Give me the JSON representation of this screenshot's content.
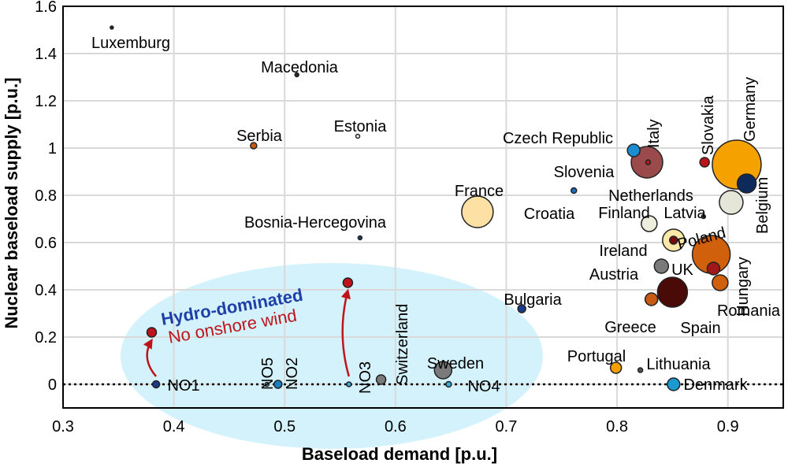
{
  "chart_data": {
    "type": "scatter",
    "xlabel": "Baseload demand [p.u.]",
    "ylabel": "Nuclear baseload supply [p.u.]",
    "xlim": [
      0.3,
      0.95
    ],
    "ylim": [
      -0.1,
      1.6
    ],
    "xticks": [
      "0.3",
      "0.4",
      "0.5",
      "0.6",
      "0.7",
      "0.8",
      "0.9"
    ],
    "yticks": [
      "0",
      "0.2",
      "0.4",
      "0.6",
      "0.8",
      "1",
      "1.2",
      "1.4",
      "1.6"
    ],
    "grid": true,
    "zero_line": "dotted",
    "annotations": {
      "hydro": "Hydro-dominated",
      "wind": "No onshore wind"
    },
    "highlight_colors": {
      "hydro_region": "#d4f2fb",
      "hydro_text": "#1f3fa8",
      "wind_text": "#c0141c"
    },
    "arrows": [
      {
        "from": [
          0.384,
          0.0
        ],
        "to": [
          0.38,
          0.22
        ]
      },
      {
        "from": [
          0.558,
          0.0
        ],
        "to": [
          0.557,
          0.43
        ]
      }
    ],
    "points": [
      {
        "label": "Luxemburg",
        "x": 0.344,
        "y": 1.51,
        "size": 2,
        "color": "#202838"
      },
      {
        "label": "Macedonia",
        "x": 0.511,
        "y": 1.31,
        "size": 2.5,
        "color": "#202838"
      },
      {
        "label": "Serbia",
        "x": 0.472,
        "y": 1.01,
        "size": 4,
        "color": "#c85a14"
      },
      {
        "label": "Estonia",
        "x": 0.566,
        "y": 1.05,
        "size": 2.5,
        "color": "#e8e8e8"
      },
      {
        "label": "Bosnia-Hercegovina",
        "x": 0.568,
        "y": 0.62,
        "size": 2.5,
        "color": "#1f3a6e"
      },
      {
        "label": "France",
        "x": 0.674,
        "y": 0.73,
        "size": 20,
        "color": "#fde0a4"
      },
      {
        "label": "Czech Republic",
        "x": 0.815,
        "y": 0.99,
        "size": 8,
        "color": "#1a8ccf"
      },
      {
        "label": "Italy",
        "x": 0.827,
        "y": 0.94,
        "size": 20,
        "color": "#9a4a4a"
      },
      {
        "label": "Slovenia",
        "x": 0.828,
        "y": 0.94,
        "size": 3,
        "color": "#c0141c"
      },
      {
        "label": "Croatia",
        "x": 0.761,
        "y": 0.82,
        "size": 3.5,
        "color": "#1a6fbf"
      },
      {
        "label": "Slovakia",
        "x": 0.879,
        "y": 0.94,
        "size": 6,
        "color": "#c0141c"
      },
      {
        "label": "Germany",
        "x": 0.908,
        "y": 0.93,
        "size": 31,
        "color": "#f5a100"
      },
      {
        "label": "Belgium",
        "x": 0.917,
        "y": 0.85,
        "size": 12,
        "color": "#0e2a5a"
      },
      {
        "label": "Netherlands",
        "x": 0.903,
        "y": 0.77,
        "size": 15,
        "color": "#e6e6d8"
      },
      {
        "label": "Latvia",
        "x": 0.878,
        "y": 0.71,
        "size": 2.5,
        "color": "#666666"
      },
      {
        "label": "Finland",
        "x": 0.829,
        "y": 0.68,
        "size": 10,
        "color": "#eeeedd"
      },
      {
        "label": "Poland",
        "x": 0.851,
        "y": 0.61,
        "size": 14,
        "color": "#fde8a8"
      },
      {
        "label": "Ireland",
        "x": 0.851,
        "y": 0.61,
        "size": 5,
        "color": "#7a0a0a"
      },
      {
        "label": "Hungary",
        "x": 0.885,
        "y": 0.55,
        "size": 24,
        "color": "#d0600c"
      },
      {
        "label": "UK",
        "x": 0.887,
        "y": 0.49,
        "size": 8,
        "color": "#a0181c"
      },
      {
        "label": "Austria",
        "x": 0.84,
        "y": 0.5,
        "size": 9,
        "color": "#7a7a7a"
      },
      {
        "label": "Romania",
        "x": 0.893,
        "y": 0.43,
        "size": 10,
        "color": "#d0600c"
      },
      {
        "label": "Spain",
        "x": 0.85,
        "y": 0.39,
        "size": 19,
        "color": "#4a0a08"
      },
      {
        "label": "Greece",
        "x": 0.831,
        "y": 0.36,
        "size": 8,
        "color": "#c85a14"
      },
      {
        "label": "Bulgaria",
        "x": 0.714,
        "y": 0.32,
        "size": 5,
        "color": "#1a3a8a"
      },
      {
        "label": "Portugal",
        "x": 0.799,
        "y": 0.07,
        "size": 7,
        "color": "#f5a000"
      },
      {
        "label": "Lithuania",
        "x": 0.821,
        "y": 0.06,
        "size": 3,
        "color": "#555555"
      },
      {
        "label": "Denmark",
        "x": 0.851,
        "y": 0.0,
        "size": 8,
        "color": "#1a9ad0"
      },
      {
        "label": "Sweden",
        "x": 0.643,
        "y": 0.06,
        "size": 11,
        "color": "#7a7a7a"
      },
      {
        "label": "NO4",
        "x": 0.648,
        "y": 0.0,
        "size": 3.5,
        "color": "#3aaad8"
      },
      {
        "label": "Switzerland",
        "x": 0.587,
        "y": 0.02,
        "size": 6,
        "color": "#7a7a7a"
      },
      {
        "label": "NO3",
        "x": 0.558,
        "y": 0.0,
        "size": 3,
        "color": "#3aaad8"
      },
      {
        "label": "NO2",
        "x": 0.494,
        "y": 0.0,
        "size": 5,
        "color": "#1a7fc0"
      },
      {
        "label": "NO5",
        "x": 0.484,
        "y": 0.0,
        "size": 2.5,
        "color": "#3aaad8"
      },
      {
        "label": "NO1",
        "x": 0.384,
        "y": 0.0,
        "size": 4.5,
        "color": "#1a3a8a"
      },
      {
        "label": "",
        "x": 0.38,
        "y": 0.22,
        "size": 6,
        "color": "#c0141c"
      },
      {
        "label": "",
        "x": 0.557,
        "y": 0.43,
        "size": 6,
        "color": "#c0141c"
      }
    ]
  }
}
